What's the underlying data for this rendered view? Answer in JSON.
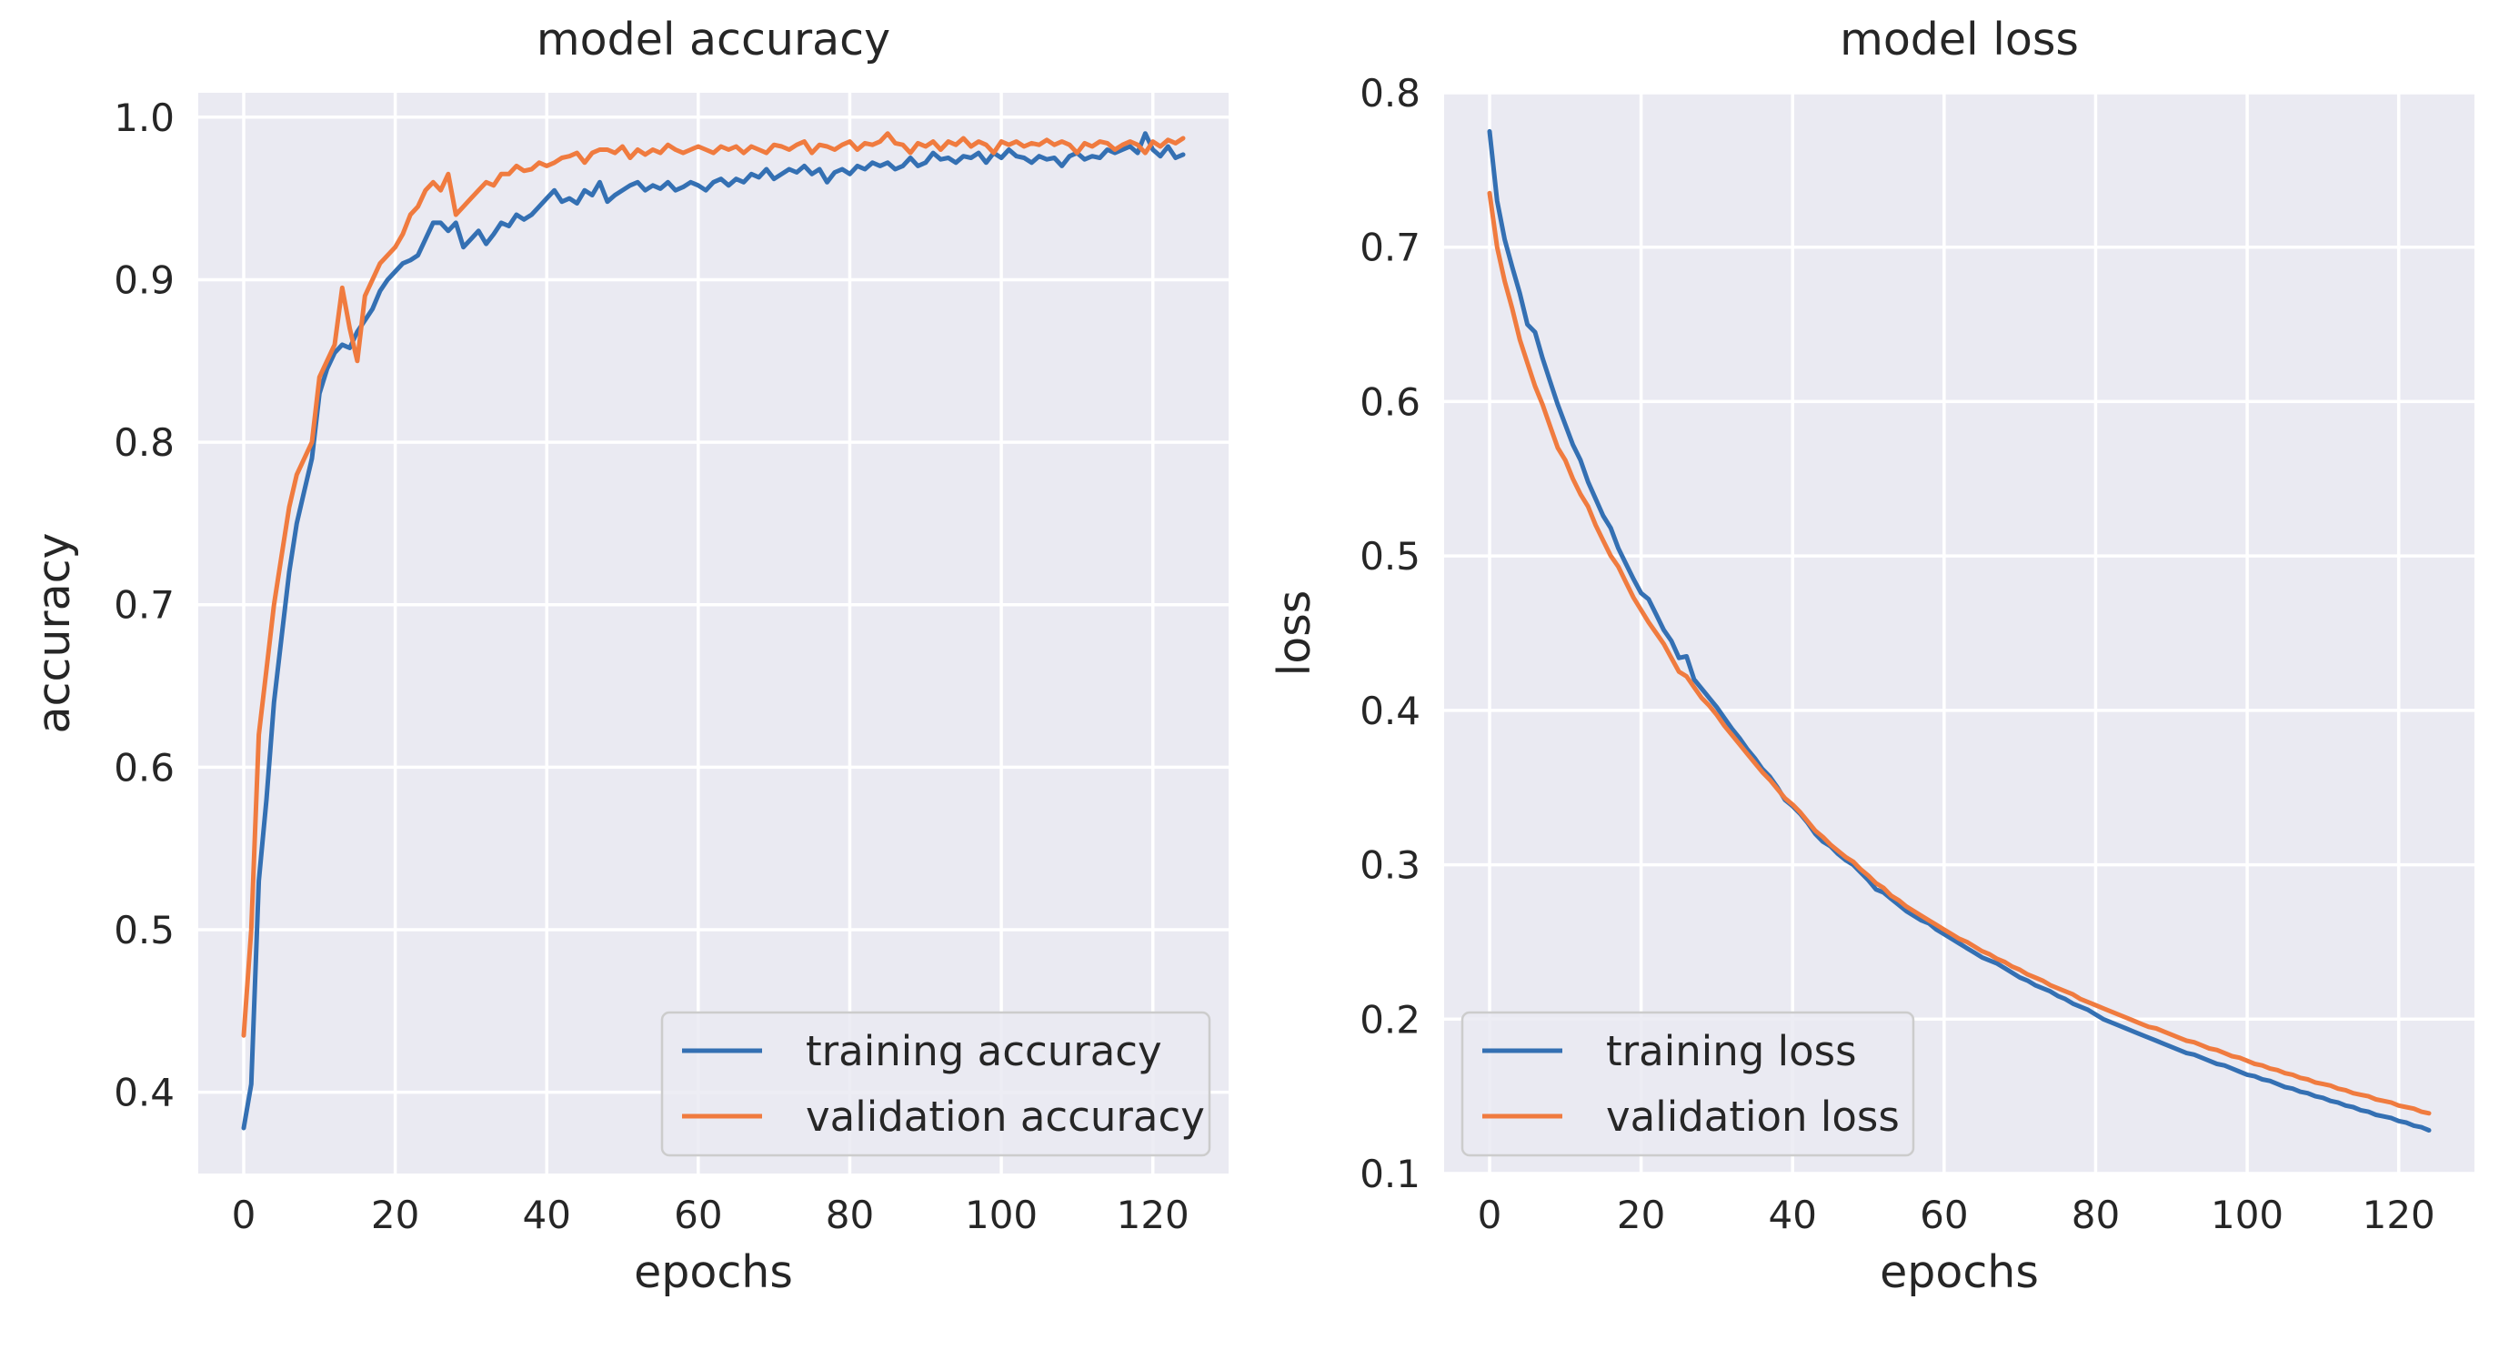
{
  "figure": {
    "panels": 2
  },
  "colors": {
    "background": "#eaeaf2",
    "grid": "#ffffff",
    "training": "#3470b3",
    "validation": "#f07b3f",
    "text": "#262626",
    "legend_bg": "#eaeaf2",
    "legend_border": "#cccccc"
  },
  "chart_data": [
    {
      "type": "line",
      "title": "model accuracy",
      "xlabel": "epochs",
      "ylabel": "accuracy",
      "xlim": [
        -6,
        130
      ],
      "ylim": [
        0.35,
        1.015
      ],
      "xticks": [
        0,
        20,
        40,
        60,
        80,
        100,
        120
      ],
      "xtick_labels": [
        "0",
        "20",
        "40",
        "60",
        "80",
        "100",
        "120"
      ],
      "yticks": [
        0.4,
        0.5,
        0.6,
        0.7,
        0.8,
        0.9,
        1.0
      ],
      "ytick_labels": [
        "0.4",
        "0.5",
        "0.6",
        "0.7",
        "0.8",
        "0.9",
        "1.0"
      ],
      "grid": true,
      "legend_position": "lower-right",
      "x": [
        0,
        1,
        2,
        3,
        4,
        5,
        6,
        7,
        8,
        9,
        10,
        11,
        12,
        13,
        14,
        15,
        16,
        17,
        18,
        19,
        20,
        21,
        22,
        23,
        24,
        25,
        26,
        27,
        28,
        29,
        30,
        31,
        32,
        33,
        34,
        35,
        36,
        37,
        38,
        39,
        40,
        41,
        42,
        43,
        44,
        45,
        46,
        47,
        48,
        49,
        50,
        51,
        52,
        53,
        54,
        55,
        56,
        57,
        58,
        59,
        60,
        61,
        62,
        63,
        64,
        65,
        66,
        67,
        68,
        69,
        70,
        71,
        72,
        73,
        74,
        75,
        76,
        77,
        78,
        79,
        80,
        81,
        82,
        83,
        84,
        85,
        86,
        87,
        88,
        89,
        90,
        91,
        92,
        93,
        94,
        95,
        96,
        97,
        98,
        99,
        100,
        101,
        102,
        103,
        104,
        105,
        106,
        107,
        108,
        109,
        110,
        111,
        112,
        113,
        114,
        115,
        116,
        117,
        118,
        119,
        120,
        121,
        122,
        123,
        124
      ],
      "series": [
        {
          "name": "training accuracy",
          "color": "#3470b3",
          "values": [
            0.378,
            0.405,
            0.53,
            0.58,
            0.64,
            0.68,
            0.72,
            0.75,
            0.77,
            0.79,
            0.83,
            0.845,
            0.855,
            0.86,
            0.858,
            0.868,
            0.875,
            0.882,
            0.893,
            0.9,
            0.905,
            0.91,
            0.912,
            0.915,
            0.925,
            0.935,
            0.935,
            0.93,
            0.935,
            0.92,
            0.925,
            0.93,
            0.922,
            0.928,
            0.935,
            0.933,
            0.94,
            0.937,
            0.94,
            0.945,
            0.95,
            0.955,
            0.948,
            0.95,
            0.947,
            0.955,
            0.952,
            0.96,
            0.948,
            0.952,
            0.955,
            0.958,
            0.96,
            0.955,
            0.958,
            0.956,
            0.96,
            0.955,
            0.957,
            0.96,
            0.958,
            0.955,
            0.96,
            0.962,
            0.958,
            0.962,
            0.96,
            0.965,
            0.963,
            0.968,
            0.962,
            0.965,
            0.968,
            0.966,
            0.97,
            0.965,
            0.968,
            0.96,
            0.966,
            0.968,
            0.965,
            0.97,
            0.968,
            0.972,
            0.97,
            0.972,
            0.968,
            0.97,
            0.975,
            0.97,
            0.972,
            0.978,
            0.974,
            0.975,
            0.972,
            0.976,
            0.975,
            0.978,
            0.972,
            0.978,
            0.975,
            0.98,
            0.976,
            0.975,
            0.972,
            0.976,
            0.974,
            0.975,
            0.97,
            0.976,
            0.978,
            0.974,
            0.976,
            0.975,
            0.98,
            0.978,
            0.98,
            0.982,
            0.978,
            0.99,
            0.98,
            0.976,
            0.982,
            0.975,
            0.977
          ]
        },
        {
          "name": "validation accuracy",
          "color": "#f07b3f",
          "values": [
            0.435,
            0.5,
            0.62,
            0.66,
            0.7,
            0.73,
            0.76,
            0.78,
            0.79,
            0.8,
            0.84,
            0.85,
            0.86,
            0.895,
            0.87,
            0.85,
            0.89,
            0.9,
            0.91,
            0.915,
            0.92,
            0.928,
            0.94,
            0.945,
            0.955,
            0.96,
            0.955,
            0.965,
            0.94,
            0.945,
            0.95,
            0.955,
            0.96,
            0.958,
            0.965,
            0.965,
            0.97,
            0.967,
            0.968,
            0.972,
            0.97,
            0.972,
            0.975,
            0.976,
            0.978,
            0.972,
            0.978,
            0.98,
            0.98,
            0.978,
            0.982,
            0.975,
            0.98,
            0.977,
            0.98,
            0.978,
            0.983,
            0.98,
            0.978,
            0.98,
            0.982,
            0.98,
            0.978,
            0.982,
            0.98,
            0.982,
            0.978,
            0.982,
            0.98,
            0.978,
            0.983,
            0.982,
            0.98,
            0.983,
            0.985,
            0.978,
            0.983,
            0.982,
            0.98,
            0.983,
            0.985,
            0.98,
            0.984,
            0.983,
            0.985,
            0.99,
            0.984,
            0.983,
            0.978,
            0.984,
            0.982,
            0.985,
            0.98,
            0.985,
            0.983,
            0.987,
            0.982,
            0.985,
            0.983,
            0.978,
            0.985,
            0.983,
            0.985,
            0.982,
            0.984,
            0.983,
            0.986,
            0.983,
            0.985,
            0.983,
            0.978,
            0.984,
            0.982,
            0.985,
            0.984,
            0.98,
            0.983,
            0.985,
            0.983,
            0.978,
            0.985,
            0.982,
            0.986,
            0.984,
            0.987
          ]
        }
      ]
    },
    {
      "type": "line",
      "title": "model loss",
      "xlabel": "epochs",
      "ylabel": "loss",
      "xlim": [
        -6,
        130
      ],
      "ylim": [
        0.1,
        0.8
      ],
      "xticks": [
        0,
        20,
        40,
        60,
        80,
        100,
        120
      ],
      "xtick_labels": [
        "0",
        "20",
        "40",
        "60",
        "80",
        "100",
        "120"
      ],
      "yticks": [
        0.1,
        0.2,
        0.3,
        0.4,
        0.5,
        0.6,
        0.7,
        0.8
      ],
      "ytick_labels": [
        "0.1",
        "0.2",
        "0.3",
        "0.4",
        "0.5",
        "0.6",
        "0.7",
        "0.8"
      ],
      "grid": true,
      "legend_position": "lower-left",
      "x": [
        0,
        1,
        2,
        3,
        4,
        5,
        6,
        7,
        8,
        9,
        10,
        11,
        12,
        13,
        14,
        15,
        16,
        17,
        18,
        19,
        20,
        21,
        22,
        23,
        24,
        25,
        26,
        27,
        28,
        29,
        30,
        31,
        32,
        33,
        34,
        35,
        36,
        37,
        38,
        39,
        40,
        41,
        42,
        43,
        44,
        45,
        46,
        47,
        48,
        49,
        50,
        51,
        52,
        53,
        54,
        55,
        56,
        57,
        58,
        59,
        60,
        61,
        62,
        63,
        64,
        65,
        66,
        67,
        68,
        69,
        70,
        71,
        72,
        73,
        74,
        75,
        76,
        77,
        78,
        79,
        80,
        81,
        82,
        83,
        84,
        85,
        86,
        87,
        88,
        89,
        90,
        91,
        92,
        93,
        94,
        95,
        96,
        97,
        98,
        99,
        100,
        101,
        102,
        103,
        104,
        105,
        106,
        107,
        108,
        109,
        110,
        111,
        112,
        113,
        114,
        115,
        116,
        117,
        118,
        119,
        120,
        121,
        122,
        123,
        124
      ],
      "series": [
        {
          "name": "training loss",
          "color": "#3470b3",
          "values": [
            0.775,
            0.73,
            0.705,
            0.687,
            0.67,
            0.65,
            0.645,
            0.628,
            0.613,
            0.598,
            0.585,
            0.572,
            0.562,
            0.548,
            0.537,
            0.526,
            0.518,
            0.505,
            0.495,
            0.485,
            0.476,
            0.472,
            0.462,
            0.452,
            0.445,
            0.434,
            0.435,
            0.42,
            0.414,
            0.408,
            0.402,
            0.395,
            0.388,
            0.382,
            0.375,
            0.369,
            0.362,
            0.357,
            0.35,
            0.342,
            0.338,
            0.333,
            0.327,
            0.32,
            0.315,
            0.312,
            0.307,
            0.303,
            0.3,
            0.295,
            0.29,
            0.284,
            0.282,
            0.278,
            0.274,
            0.27,
            0.267,
            0.264,
            0.262,
            0.258,
            0.255,
            0.252,
            0.249,
            0.246,
            0.243,
            0.24,
            0.238,
            0.236,
            0.233,
            0.23,
            0.227,
            0.225,
            0.222,
            0.22,
            0.218,
            0.215,
            0.213,
            0.21,
            0.208,
            0.206,
            0.203,
            0.2,
            0.198,
            0.196,
            0.194,
            0.192,
            0.19,
            0.188,
            0.186,
            0.184,
            0.182,
            0.18,
            0.178,
            0.177,
            0.175,
            0.173,
            0.171,
            0.17,
            0.168,
            0.166,
            0.164,
            0.163,
            0.161,
            0.16,
            0.158,
            0.156,
            0.155,
            0.153,
            0.152,
            0.15,
            0.149,
            0.147,
            0.146,
            0.144,
            0.143,
            0.141,
            0.14,
            0.138,
            0.137,
            0.136,
            0.134,
            0.133,
            0.131,
            0.13,
            0.128
          ]
        },
        {
          "name": "validation loss",
          "color": "#f07b3f",
          "values": [
            0.735,
            0.7,
            0.678,
            0.66,
            0.64,
            0.625,
            0.61,
            0.598,
            0.584,
            0.57,
            0.562,
            0.55,
            0.54,
            0.532,
            0.52,
            0.51,
            0.5,
            0.493,
            0.483,
            0.473,
            0.465,
            0.457,
            0.45,
            0.443,
            0.434,
            0.425,
            0.422,
            0.415,
            0.408,
            0.403,
            0.397,
            0.39,
            0.384,
            0.378,
            0.372,
            0.366,
            0.36,
            0.355,
            0.349,
            0.343,
            0.339,
            0.334,
            0.328,
            0.322,
            0.318,
            0.313,
            0.309,
            0.305,
            0.302,
            0.297,
            0.293,
            0.288,
            0.285,
            0.28,
            0.277,
            0.273,
            0.27,
            0.267,
            0.264,
            0.261,
            0.258,
            0.255,
            0.252,
            0.25,
            0.247,
            0.244,
            0.242,
            0.239,
            0.237,
            0.234,
            0.232,
            0.229,
            0.227,
            0.225,
            0.222,
            0.22,
            0.218,
            0.216,
            0.213,
            0.211,
            0.209,
            0.207,
            0.205,
            0.203,
            0.201,
            0.199,
            0.197,
            0.195,
            0.194,
            0.192,
            0.19,
            0.188,
            0.186,
            0.185,
            0.183,
            0.181,
            0.18,
            0.178,
            0.176,
            0.175,
            0.173,
            0.171,
            0.17,
            0.168,
            0.167,
            0.165,
            0.164,
            0.162,
            0.161,
            0.159,
            0.158,
            0.157,
            0.155,
            0.154,
            0.152,
            0.151,
            0.15,
            0.148,
            0.147,
            0.146,
            0.144,
            0.143,
            0.142,
            0.14,
            0.139
          ]
        }
      ]
    }
  ]
}
